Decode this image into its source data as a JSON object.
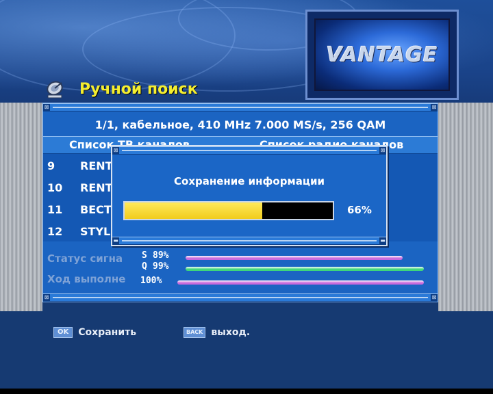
{
  "header": {
    "title": "Ручной поиск",
    "logo_text": "VANTAGE"
  },
  "panel": {
    "info": "1/1, кабельное, 410 MHz 7.000 MS/s, 256 QAM",
    "tv_list_header": "Список ТВ каналов",
    "radio_list_header": "Список радио каналов",
    "channels": [
      {
        "num": "9",
        "name": "RENT"
      },
      {
        "num": "10",
        "name": "RENT"
      },
      {
        "num": "11",
        "name": "ВЕСТ"
      },
      {
        "num": "12",
        "name": "STYL"
      }
    ]
  },
  "signal": {
    "status_label": "Статус сигна",
    "s_label": "S",
    "s_value": "89%",
    "s_level": 0.89,
    "q_label": "Q",
    "q_value": "99%",
    "q_level": 0.99,
    "progress_label": "Ход выполне",
    "progress_value": "100%",
    "progress_level": 1.0
  },
  "dialog": {
    "title": "Сохранение информации",
    "percent": "66%",
    "level": 0.66
  },
  "footer": {
    "ok_key": "OK",
    "ok_label": "Сохранить",
    "back_key": "BACK",
    "back_label": "выход."
  },
  "colors": {
    "title_yellow": "#f4ee30",
    "progress_yellow": "#f1cc1c",
    "s_bar": "#c86adc",
    "q_bar": "#3fd67a",
    "progress_bar": "#c86adc"
  }
}
